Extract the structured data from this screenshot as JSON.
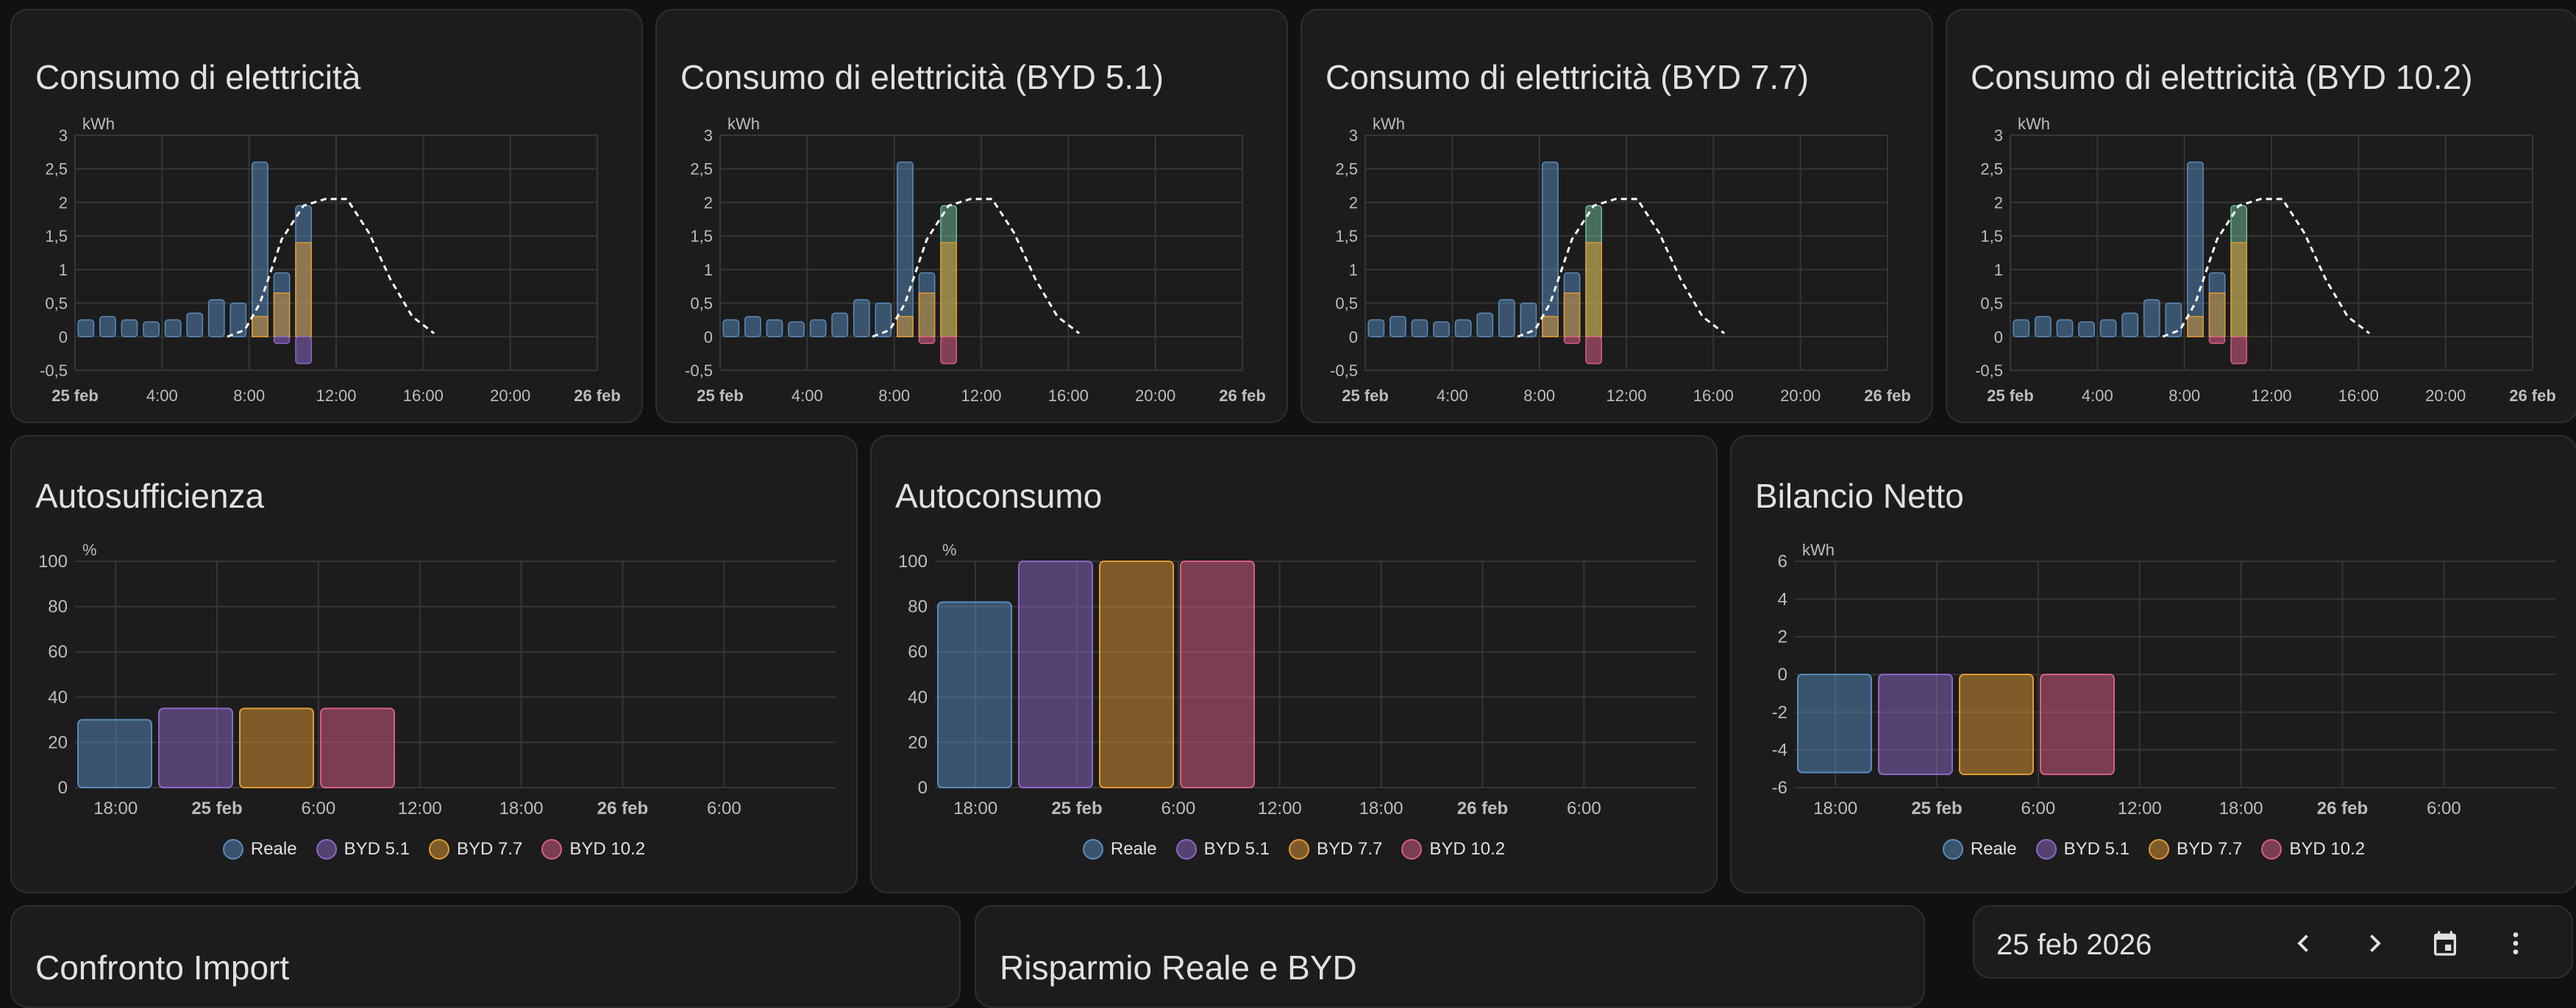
{
  "colors": {
    "reale": "#5a8bbd",
    "byd51": "#8b68c4",
    "byd77": "#e09a34",
    "byd102": "#d85f84",
    "solar": "#6fbf97",
    "forecast": "#ffffff",
    "grid": "#363636",
    "axis": "#bdbdbd"
  },
  "consumption_cards": [
    {
      "title": "Consumo di elettricità",
      "neg_color": "byd51",
      "top_color": "reale"
    },
    {
      "title": "Consumo di elettricità (BYD 5.1)",
      "neg_color": "byd102",
      "top_color": "solar"
    },
    {
      "title": "Consumo di elettricità (BYD 7.7)",
      "neg_color": "byd102",
      "top_color": "solar"
    },
    {
      "title": "Consumo di elettricità (BYD 10.2)",
      "neg_color": "byd102",
      "top_color": "solar"
    }
  ],
  "consumption_chart": {
    "unit": "kWh",
    "y_ticks": [
      "3",
      "2,5",
      "2",
      "1,5",
      "1",
      "0,5",
      "0",
      "-0,5"
    ],
    "x_ticks": [
      {
        "label": "25 feb",
        "bold": true
      },
      {
        "label": "4:00",
        "bold": false
      },
      {
        "label": "8:00",
        "bold": false
      },
      {
        "label": "12:00",
        "bold": false
      },
      {
        "label": "16:00",
        "bold": false
      },
      {
        "label": "20:00",
        "bold": false
      },
      {
        "label": "26 feb",
        "bold": true
      }
    ]
  },
  "chart_data": [
    {
      "type": "bar",
      "title": "Consumo di elettricità",
      "ylabel": "kWh",
      "ylim": [
        -0.5,
        3
      ],
      "x": [
        "0:00",
        "1:00",
        "2:00",
        "3:00",
        "4:00",
        "5:00",
        "6:00",
        "7:00",
        "8:00",
        "9:00",
        "10:00"
      ],
      "series": [
        {
          "values": [
            0.25,
            0.3,
            0.25,
            0.22,
            0.25,
            0.35,
            0.55,
            0.5,
            2.6,
            0.95,
            1.95
          ]
        },
        {
          "values": [
            0,
            0,
            0,
            0,
            0,
            0,
            0,
            0,
            0.3,
            0.65,
            1.4
          ]
        },
        {
          "values": [
            0,
            0,
            0,
            0,
            0,
            0,
            0,
            0,
            0,
            -0.1,
            -0.4
          ]
        }
      ],
      "forecast_line": {
        "x": [
          7,
          7.8,
          8.5,
          9.5,
          10.5,
          11.5,
          12.5,
          13.5,
          14.5,
          15.5,
          16.5
        ],
        "y": [
          0,
          0.1,
          0.5,
          1.45,
          1.95,
          2.05,
          2.05,
          1.55,
          0.85,
          0.3,
          0.05
        ]
      }
    },
    {
      "type": "bar",
      "title": "Autosufficienza",
      "ylabel": "%",
      "ylim": [
        0,
        100
      ],
      "categories": [
        "Reale",
        "BYD 5.1",
        "BYD 7.7",
        "BYD 10.2"
      ],
      "values": [
        30,
        35,
        35,
        35
      ]
    },
    {
      "type": "bar",
      "title": "Autoconsumo",
      "ylabel": "%",
      "ylim": [
        0,
        100
      ],
      "categories": [
        "Reale",
        "BYD 5.1",
        "BYD 7.7",
        "BYD 10.2"
      ],
      "values": [
        82,
        100,
        100,
        100
      ]
    },
    {
      "type": "bar",
      "title": "Bilancio Netto",
      "ylabel": "kWh",
      "ylim": [
        -6,
        6
      ],
      "categories": [
        "Reale",
        "BYD 5.1",
        "BYD 7.7",
        "BYD 10.2"
      ],
      "values": [
        -5.2,
        -5.3,
        -5.3,
        -5.3
      ]
    }
  ],
  "bar_cards": [
    {
      "title": "Autosufficienza",
      "unit": "%",
      "y_ticks": [
        "100",
        "80",
        "60",
        "40",
        "20",
        "0"
      ]
    },
    {
      "title": "Autoconsumo",
      "unit": "%",
      "y_ticks": [
        "100",
        "80",
        "60",
        "40",
        "20",
        "0"
      ]
    },
    {
      "title": "Bilancio Netto",
      "unit": "kWh",
      "y_ticks": [
        "6",
        "4",
        "2",
        "0",
        "-2",
        "-4",
        "-6"
      ]
    }
  ],
  "bar_x_ticks": [
    {
      "label": "18:00",
      "bold": false
    },
    {
      "label": "25 feb",
      "bold": true
    },
    {
      "label": "6:00",
      "bold": false
    },
    {
      "label": "12:00",
      "bold": false
    },
    {
      "label": "18:00",
      "bold": false
    },
    {
      "label": "26 feb",
      "bold": true
    },
    {
      "label": "6:00",
      "bold": false
    }
  ],
  "legend": [
    "Reale",
    "BYD 5.1",
    "BYD 7.7",
    "BYD 10.2"
  ],
  "bottom_cards": [
    "Confronto Import",
    "Risparmio Reale e BYD"
  ],
  "date_picker": {
    "label": "25 feb 2026",
    "icons": [
      "chevron-left-icon",
      "chevron-right-icon",
      "calendar-icon",
      "more-vert-icon"
    ]
  }
}
